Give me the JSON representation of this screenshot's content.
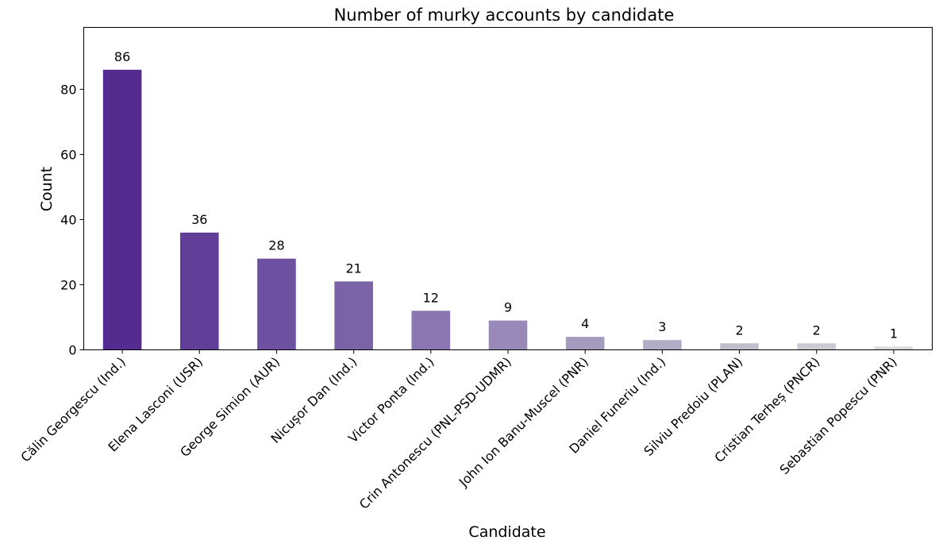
{
  "chart_data": {
    "type": "bar",
    "title": "Number of murky accounts by candidate",
    "xlabel": "Candidate",
    "ylabel": "Count",
    "categories": [
      "Călin Georgescu (Ind.)",
      "Elena Lasconi (USR)",
      "George Simion (AUR)",
      "Nicușor Dan (Ind.)",
      "Victor Ponta (Ind.)",
      "Crin Antonescu (PNL-PSD-UDMR)",
      "John Ion Banu-Muscel (PNR)",
      "Daniel Funeriu (Ind.)",
      "Silviu Predoiu (PLAN)",
      "Cristian Terheș (PNCR)",
      "Sebastian Popescu (PNR)"
    ],
    "values": [
      86,
      36,
      28,
      21,
      12,
      9,
      4,
      3,
      2,
      2,
      1
    ],
    "value_labels": [
      "86",
      "36",
      "28",
      "21",
      "12",
      "9",
      "4",
      "3",
      "2",
      "2",
      "1"
    ],
    "colors": [
      "#542c8f",
      "#613e98",
      "#6d50a0",
      "#7b63a8",
      "#8a76b1",
      "#9889b8",
      "#a59bbf",
      "#b3acc6",
      "#bfbecd",
      "#cacad2",
      "#d9d9d9"
    ],
    "ylim": [
      0,
      99
    ],
    "yticks": [
      0,
      20,
      40,
      60,
      80
    ],
    "ytick_labels": [
      "0",
      "20",
      "40",
      "60",
      "80"
    ],
    "grid": false,
    "legend": "none"
  }
}
